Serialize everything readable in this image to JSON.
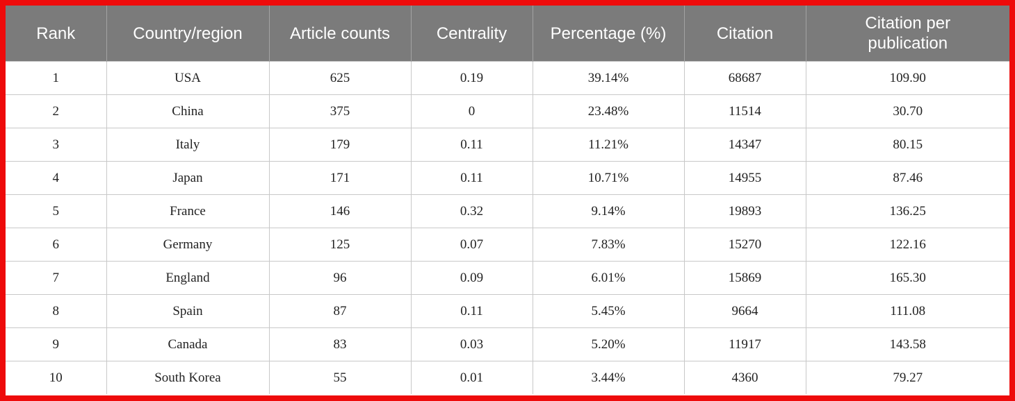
{
  "table": {
    "columns": {
      "rank": "Rank",
      "country": "Country/region",
      "articles": "Article counts",
      "centrality": "Centrality",
      "percentage": "Percentage (%)",
      "citation": "Citation",
      "cpp": "Citation per publication"
    },
    "rows": [
      {
        "rank": "1",
        "country": "USA",
        "articles": "625",
        "centrality": "0.19",
        "percentage": "39.14%",
        "citation": "68687",
        "cpp": "109.90"
      },
      {
        "rank": "2",
        "country": "China",
        "articles": "375",
        "centrality": "0",
        "percentage": "23.48%",
        "citation": "11514",
        "cpp": "30.70"
      },
      {
        "rank": "3",
        "country": "Italy",
        "articles": "179",
        "centrality": "0.11",
        "percentage": "11.21%",
        "citation": "14347",
        "cpp": "80.15"
      },
      {
        "rank": "4",
        "country": "Japan",
        "articles": "171",
        "centrality": "0.11",
        "percentage": "10.71%",
        "citation": "14955",
        "cpp": "87.46"
      },
      {
        "rank": "5",
        "country": "France",
        "articles": "146",
        "centrality": "0.32",
        "percentage": "9.14%",
        "citation": "19893",
        "cpp": "136.25"
      },
      {
        "rank": "6",
        "country": "Germany",
        "articles": "125",
        "centrality": "0.07",
        "percentage": "7.83%",
        "citation": "15270",
        "cpp": "122.16"
      },
      {
        "rank": "7",
        "country": "England",
        "articles": "96",
        "centrality": "0.09",
        "percentage": "6.01%",
        "citation": "15869",
        "cpp": "165.30"
      },
      {
        "rank": "8",
        "country": "Spain",
        "articles": "87",
        "centrality": "0.11",
        "percentage": "5.45%",
        "citation": "9664",
        "cpp": "111.08"
      },
      {
        "rank": "9",
        "country": "Canada",
        "articles": "83",
        "centrality": "0.03",
        "percentage": "5.20%",
        "citation": "11917",
        "cpp": "143.58"
      },
      {
        "rank": "10",
        "country": "South Korea",
        "articles": "55",
        "centrality": "0.01",
        "percentage": "3.44%",
        "citation": "4360",
        "cpp": "79.27"
      }
    ]
  },
  "colors": {
    "frame": "#ee0b0b",
    "header_bg": "#7b7b7b",
    "header_text": "#ffffff",
    "grid": "#c8c8c8"
  }
}
